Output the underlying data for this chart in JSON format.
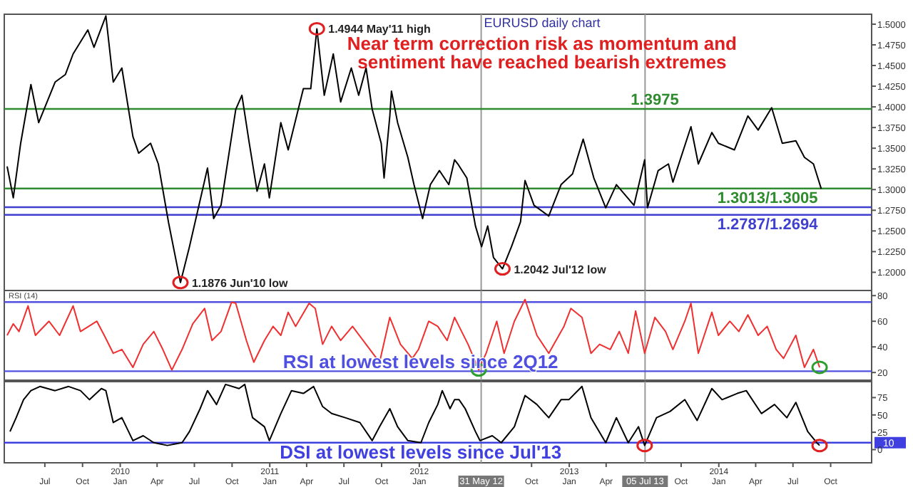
{
  "chart_data": [
    {
      "type": "line",
      "title": "EURUSD daily chart",
      "subtitle": "Near term correction risk as momentum and sentiment have reached bearish extremes",
      "xlim": [
        "2009-03-24",
        "2015-01-09"
      ],
      "ylim": [
        1.178,
        1.512
      ],
      "yticks": [
        {
          "value": 1.2,
          "label": "1.2000"
        },
        {
          "value": 1.225,
          "label": "1.2250"
        },
        {
          "value": 1.25,
          "label": "1.2500"
        },
        {
          "value": 1.275,
          "label": "1.2750"
        },
        {
          "value": 1.3,
          "label": "1.3000"
        },
        {
          "value": 1.325,
          "label": "1.3250"
        },
        {
          "value": 1.35,
          "label": "1.3500"
        },
        {
          "value": 1.375,
          "label": "1.3750"
        },
        {
          "value": 1.4,
          "label": "1.4000"
        },
        {
          "value": 1.425,
          "label": "1.4250"
        },
        {
          "value": 1.45,
          "label": "1.4500"
        },
        {
          "value": 1.475,
          "label": "1.4750"
        },
        {
          "value": 1.5,
          "label": "1.5000"
        }
      ],
      "tick_labels": "y",
      "series": [
        {
          "color": "#000000",
          "x": [
            "2009-03-31",
            "2009-04-15",
            "2009-05-03",
            "2009-05-28",
            "2009-06-16",
            "2009-07-26",
            "2009-08-20",
            "2009-09-08",
            "2009-10-14",
            "2009-10-29",
            "2009-11-27",
            "2009-12-15",
            "2010-01-05",
            "2010-02-01",
            "2010-02-15",
            "2010-03-16",
            "2010-04-04",
            "2010-04-29",
            "2010-05-28",
            "2010-06-19",
            "2010-08-02",
            "2010-08-17",
            "2010-09-04",
            "2010-10-10",
            "2010-10-25",
            "2010-11-12",
            "2010-12-01",
            "2010-12-19",
            "2010-12-31",
            "2011-01-28",
            "2011-02-15",
            "2011-03-24",
            "2011-04-11",
            "2011-04-26",
            "2011-05-14",
            "2011-06-05",
            "2011-06-23",
            "2011-07-19",
            "2011-08-06",
            "2011-08-24",
            "2011-09-08",
            "2011-09-30",
            "2011-10-07",
            "2011-10-21",
            "2011-10-25",
            "2011-11-09",
            "2011-12-04",
            "2011-12-19",
            "2012-01-09",
            "2012-01-28",
            "2012-02-19",
            "2012-03-13",
            "2012-03-27",
            "2012-04-04",
            "2012-04-26",
            "2012-05-17",
            "2012-06-01",
            "2012-06-16",
            "2012-06-30",
            "2012-07-22",
            "2012-08-13",
            "2012-09-04",
            "2012-09-15",
            "2012-10-07",
            "2012-11-12",
            "2012-12-12",
            "2013-01-09",
            "2013-02-04",
            "2013-03-02",
            "2013-03-31",
            "2013-04-26",
            "2013-06-08",
            "2013-07-04",
            "2013-07-11",
            "2013-08-06",
            "2013-08-31",
            "2013-09-11",
            "2013-10-25",
            "2013-11-12",
            "2013-12-15",
            "2013-12-31",
            "2014-02-08",
            "2014-03-13",
            "2014-04-07",
            "2014-05-10",
            "2014-06-05",
            "2014-07-08",
            "2014-07-29",
            "2014-08-20",
            "2014-09-08"
          ],
          "values": [
            1.328,
            1.29,
            1.356,
            1.427,
            1.381,
            1.43,
            1.439,
            1.464,
            1.493,
            1.472,
            1.51,
            1.43,
            1.447,
            1.364,
            1.344,
            1.356,
            1.331,
            1.26,
            1.1876,
            1.231,
            1.326,
            1.265,
            1.281,
            1.397,
            1.414,
            1.356,
            1.298,
            1.331,
            1.29,
            1.381,
            1.348,
            1.422,
            1.422,
            1.4944,
            1.414,
            1.464,
            1.406,
            1.447,
            1.414,
            1.447,
            1.397,
            1.356,
            1.314,
            1.389,
            1.419,
            1.381,
            1.339,
            1.306,
            1.265,
            1.306,
            1.323,
            1.306,
            1.336,
            1.331,
            1.314,
            1.256,
            1.231,
            1.256,
            1.218,
            1.2042,
            1.231,
            1.261,
            1.311,
            1.281,
            1.268,
            1.306,
            1.319,
            1.361,
            1.314,
            1.278,
            1.306,
            1.281,
            1.336,
            1.278,
            1.323,
            1.331,
            1.309,
            1.376,
            1.331,
            1.369,
            1.356,
            1.348,
            1.389,
            1.372,
            1.399,
            1.356,
            1.359,
            1.339,
            1.331,
            1.301
          ]
        },
        {
          "type": "scatter",
          "marker": "circle",
          "color": "#e02020",
          "x": [
            "2010-05-28",
            "2011-04-26",
            "2012-07-22"
          ],
          "values": [
            1.1876,
            1.4944,
            1.2042
          ]
        }
      ],
      "ref_lines": [
        {
          "axis": "y",
          "value": 1.3975,
          "label": "1.3975",
          "color": "#2e8b2e"
        },
        {
          "axis": "y",
          "value": 1.3013,
          "label": "1.3013/1.3005",
          "color": "#2e8b2e"
        },
        {
          "axis": "y",
          "value": 1.2787,
          "label": "1.2787/1.2694",
          "color": "#4040d0"
        },
        {
          "axis": "y",
          "value": 1.2694,
          "color": "#4040d0"
        },
        {
          "axis": "x",
          "value": "2012-05-31",
          "color": "#999999"
        },
        {
          "axis": "x",
          "value": "2013-07-05",
          "color": "#999999"
        }
      ],
      "annotations": [
        {
          "text": "1.4944 May'11 high",
          "x": "2011-04-26",
          "y": 1.4944
        },
        {
          "text": "1.1876 Jun'10 low",
          "x": "2010-05-28",
          "y": 1.1876
        },
        {
          "text": "1.2042 Jul'12 low",
          "x": "2012-07-22",
          "y": 1.2042
        }
      ]
    },
    {
      "type": "line",
      "ylabel": "RSI (14)",
      "xlim": [
        "2009-03-24",
        "2015-01-09"
      ],
      "ylim": [
        14,
        84
      ],
      "yticks": [
        20,
        40,
        60,
        80
      ],
      "tick_labels": "y",
      "series": [
        {
          "color": "#f03030",
          "x": [
            "2009-03-31",
            "2009-04-15",
            "2009-04-29",
            "2009-05-21",
            "2009-06-08",
            "2009-07-11",
            "2009-08-06",
            "2009-09-08",
            "2009-09-26",
            "2009-11-05",
            "2009-11-23",
            "2009-12-15",
            "2010-01-05",
            "2010-02-01",
            "2010-02-26",
            "2010-03-24",
            "2010-04-15",
            "2010-05-07",
            "2010-06-01",
            "2010-06-27",
            "2010-07-26",
            "2010-08-13",
            "2010-09-04",
            "2010-09-30",
            "2010-10-10",
            "2010-11-05",
            "2010-11-23",
            "2010-12-19",
            "2011-01-09",
            "2011-01-28",
            "2011-02-15",
            "2011-03-05",
            "2011-04-07",
            "2011-04-22",
            "2011-05-10",
            "2011-06-01",
            "2011-06-23",
            "2011-07-22",
            "2011-08-24",
            "2011-09-26",
            "2011-10-21",
            "2011-11-16",
            "2011-12-15",
            "2011-12-30",
            "2012-01-24",
            "2012-02-15",
            "2012-03-09",
            "2012-03-27",
            "2012-04-07",
            "2012-04-29",
            "2012-05-25",
            "2012-06-12",
            "2012-07-08",
            "2012-07-26",
            "2012-08-20",
            "2012-09-15",
            "2012-10-14",
            "2012-11-12",
            "2012-12-19",
            "2013-01-05",
            "2013-02-01",
            "2013-02-23",
            "2013-03-16",
            "2013-04-11",
            "2013-05-03",
            "2013-05-25",
            "2013-06-12",
            "2013-07-04",
            "2013-07-29",
            "2013-08-24",
            "2013-09-11",
            "2013-10-10",
            "2013-10-25",
            "2013-11-12",
            "2013-12-15",
            "2013-12-31",
            "2014-01-28",
            "2014-02-19",
            "2014-03-13",
            "2014-04-07",
            "2014-04-29",
            "2014-05-21",
            "2014-06-08",
            "2014-07-08",
            "2014-07-29",
            "2014-08-20",
            "2014-09-04"
          ],
          "values": [
            49,
            58,
            52,
            72,
            49,
            60,
            49,
            72,
            52,
            60,
            49,
            35,
            38,
            24,
            42,
            52,
            38,
            22,
            38,
            58,
            70,
            45,
            52,
            75,
            74,
            45,
            28,
            45,
            56,
            49,
            67,
            56,
            74,
            70,
            42,
            56,
            45,
            56,
            42,
            28,
            63,
            42,
            31,
            38,
            60,
            56,
            45,
            63,
            56,
            42,
            22,
            35,
            60,
            35,
            60,
            77,
            49,
            35,
            56,
            70,
            63,
            35,
            42,
            38,
            52,
            35,
            68,
            35,
            63,
            52,
            38,
            60,
            74,
            35,
            67,
            49,
            60,
            52,
            65,
            49,
            56,
            38,
            31,
            49,
            24,
            38,
            24
          ]
        },
        {
          "type": "scatter",
          "marker": "circle",
          "color": "#2e9e2e",
          "x": [
            "2012-05-25",
            "2014-09-04"
          ],
          "values": [
            22,
            24
          ]
        }
      ],
      "ref_lines": [
        {
          "axis": "y",
          "value": 75,
          "color": "#5050e0"
        },
        {
          "axis": "y",
          "value": 21,
          "color": "#5050e0"
        },
        {
          "axis": "x",
          "value": "2012-05-31",
          "color": "#999999"
        },
        {
          "axis": "x",
          "value": "2013-07-05",
          "color": "#999999"
        }
      ],
      "annotations": [
        "RSI at lowest levels since 2Q12"
      ]
    },
    {
      "type": "line",
      "xlim": [
        "2009-03-24",
        "2015-01-09"
      ],
      "ylim": [
        -19,
        98
      ],
      "yticks": [
        0,
        25,
        50,
        75
      ],
      "xticks": [
        {
          "value": "2009-07-01",
          "label": "Jul"
        },
        {
          "value": "2009-10-01",
          "label": "Oct"
        },
        {
          "value": "2010-01-01",
          "label": "2010\nJan"
        },
        {
          "value": "2010-04-01",
          "label": "Apr"
        },
        {
          "value": "2010-07-01",
          "label": "Jul"
        },
        {
          "value": "2010-10-01",
          "label": "Oct"
        },
        {
          "value": "2011-01-01",
          "label": "2011\nJan"
        },
        {
          "value": "2011-04-01",
          "label": "Apr"
        },
        {
          "value": "2011-07-01",
          "label": "Jul"
        },
        {
          "value": "2011-10-01",
          "label": "Oct"
        },
        {
          "value": "2012-01-01",
          "label": "2012\nJan"
        },
        {
          "value": "2012-10-01",
          "label": "Oct"
        },
        {
          "value": "2013-01-01",
          "label": "2013\nJan"
        },
        {
          "value": "2013-04-01",
          "label": "Apr"
        },
        {
          "value": "2013-10-01",
          "label": "Oct"
        },
        {
          "value": "2014-01-01",
          "label": "2014\nJan"
        },
        {
          "value": "2014-04-01",
          "label": "Apr"
        },
        {
          "value": "2014-07-01",
          "label": "Jul"
        },
        {
          "value": "2014-10-01",
          "label": "Oct"
        }
      ],
      "series": [
        {
          "color": "#000000",
          "x": [
            "2009-04-07",
            "2009-04-22",
            "2009-05-10",
            "2009-05-28",
            "2009-06-19",
            "2009-07-26",
            "2009-08-28",
            "2009-09-26",
            "2009-10-18",
            "2009-11-16",
            "2009-11-27",
            "2009-12-15",
            "2010-01-05",
            "2010-02-01",
            "2010-02-26",
            "2010-03-24",
            "2010-04-26",
            "2010-06-01",
            "2010-06-19",
            "2010-07-15",
            "2010-08-02",
            "2010-08-24",
            "2010-09-15",
            "2010-10-18",
            "2010-11-01",
            "2010-11-20",
            "2010-12-19",
            "2010-12-31",
            "2011-01-28",
            "2011-02-23",
            "2011-03-24",
            "2011-04-18",
            "2011-05-10",
            "2011-06-01",
            "2011-07-04",
            "2011-08-09",
            "2011-09-08",
            "2011-09-26",
            "2011-10-21",
            "2011-11-09",
            "2011-12-04",
            "2012-01-05",
            "2012-01-24",
            "2012-02-15",
            "2012-02-26",
            "2012-03-16",
            "2012-03-27",
            "2012-04-07",
            "2012-04-22",
            "2012-05-17",
            "2012-05-28",
            "2012-06-27",
            "2012-07-19",
            "2012-08-20",
            "2012-09-15",
            "2012-10-14",
            "2012-11-12",
            "2012-12-12",
            "2012-12-31",
            "2013-02-01",
            "2013-02-23",
            "2013-03-31",
            "2013-04-26",
            "2013-05-25",
            "2013-06-19",
            "2013-07-04",
            "2013-08-02",
            "2013-09-04",
            "2013-10-10",
            "2013-11-09",
            "2013-12-15",
            "2014-01-09",
            "2014-02-15",
            "2014-03-09",
            "2014-04-15",
            "2014-05-17",
            "2014-06-16",
            "2014-07-08",
            "2014-08-06",
            "2014-08-28",
            "2014-09-04"
          ],
          "values": [
            26,
            46,
            72,
            85,
            91,
            85,
            91,
            85,
            72,
            88,
            85,
            39,
            46,
            13,
            20,
            10,
            6,
            10,
            26,
            59,
            85,
            65,
            94,
            88,
            94,
            46,
            33,
            13,
            52,
            85,
            81,
            91,
            62,
            52,
            46,
            39,
            13,
            33,
            59,
            33,
            13,
            10,
            39,
            65,
            85,
            59,
            72,
            72,
            59,
            26,
            13,
            20,
            10,
            33,
            78,
            65,
            46,
            72,
            72,
            91,
            46,
            10,
            46,
            10,
            33,
            6,
            46,
            55,
            72,
            42,
            88,
            72,
            81,
            85,
            52,
            65,
            46,
            68,
            26,
            10,
            6
          ]
        },
        {
          "type": "scatter",
          "marker": "circle",
          "color": "#e02020",
          "x": [
            "2013-07-04",
            "2014-09-04"
          ],
          "values": [
            6,
            6
          ]
        }
      ],
      "ref_lines": [
        {
          "axis": "y",
          "value": 10,
          "label": "10",
          "color": "#4040e0"
        },
        {
          "axis": "x",
          "value": "2012-05-31",
          "label": "31 May 12",
          "color": "#999999"
        },
        {
          "axis": "x",
          "value": "2013-07-05",
          "label": "05 Jul 13",
          "color": "#999999"
        }
      ],
      "annotations": [
        "DSI at lowest levels since Jul'13"
      ]
    }
  ]
}
